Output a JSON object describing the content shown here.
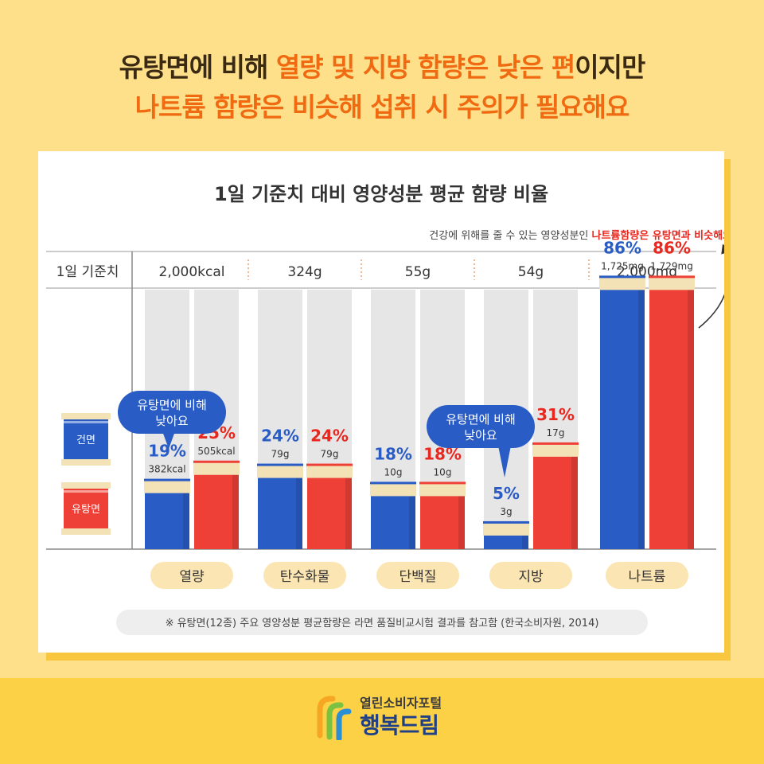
{
  "headline": {
    "line1_a": "유탕면에 비해 ",
    "line1_b": "열량 및 지방 함량은 낮은 편",
    "line1_c": "이지만",
    "line2": "나트륨 함량은 비슷해 섭취 시 주의가 필요해요"
  },
  "colors": {
    "dry": "#2a5cc6",
    "fried": "#ee4037",
    "accent": "#ef6a10",
    "redtext": "#e8271f",
    "bluetext": "#2a5cc6"
  },
  "chart_data": {
    "type": "bar",
    "title": "1일 기준치 대비 영양성분 평균 함량 비율",
    "note_prefix": "건강에 위해를 줄 수 있는 영양성분인 ",
    "note_highlight": "나트륨함량은 유탕면과 비슷해요",
    "baseline_label": "1일 기준치",
    "categories": [
      "열량",
      "탄수화물",
      "단백질",
      "지방",
      "나트륨"
    ],
    "daily_values": [
      "2,000kcal",
      "324g",
      "55g",
      "54g",
      "2,000mg"
    ],
    "ylim": [
      0,
      100
    ],
    "series": [
      {
        "name": "건면",
        "values": [
          19,
          24,
          18,
          5,
          86
        ],
        "amounts": [
          "382kcal",
          "79g",
          "10g",
          "3g",
          "1,725mg"
        ]
      },
      {
        "name": "유탕면",
        "values": [
          25,
          24,
          18,
          31,
          86
        ],
        "amounts": [
          "505kcal",
          "79g",
          "10g",
          "17g",
          "1,729mg"
        ]
      }
    ],
    "callouts": [
      {
        "text1": "유탕면에 비해",
        "text2": "낮아요",
        "category": "열량"
      },
      {
        "text1": "유탕면에 비해",
        "text2": "낮아요",
        "category": "지방"
      }
    ],
    "footnote": "※ 유탕면(12종) 주요 영양성분 평균함량은 라면 품질비교시험 결과를 참고함 (한국소비자원, 2014)"
  },
  "logo": {
    "small": "열린소비자포털",
    "big": "행복드림"
  }
}
